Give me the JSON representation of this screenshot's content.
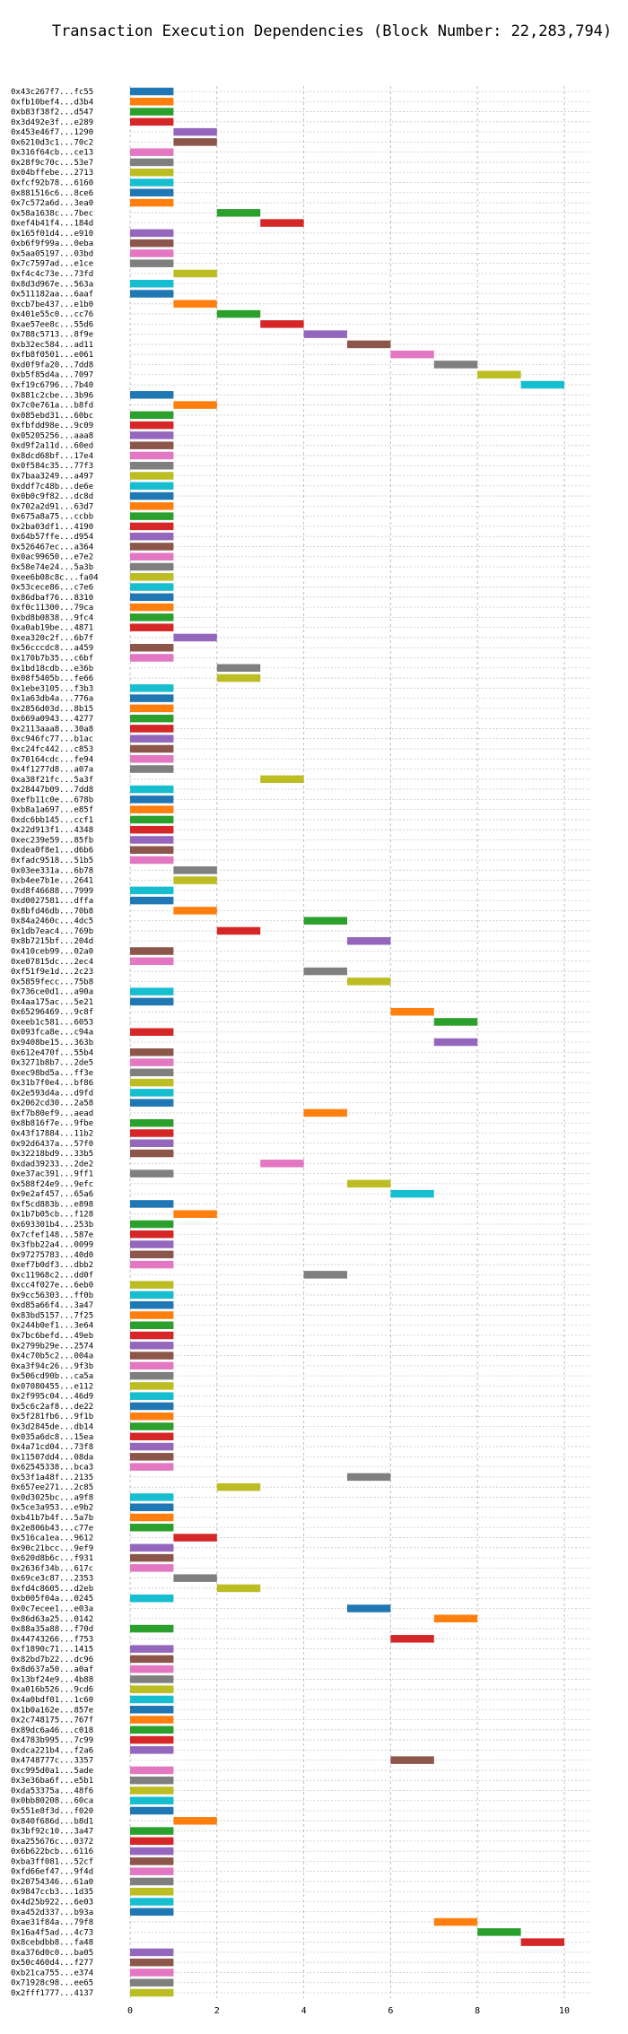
{
  "chart_data": {
    "type": "bar",
    "orientation": "horizontal-gantt",
    "title": "Transaction Execution Dependencies (Block Number: 22,283,794)",
    "xlabel": "",
    "ylabel": "",
    "xlim": [
      0,
      10.6
    ],
    "xticks": [
      0,
      2,
      4,
      6,
      8,
      10
    ],
    "grid": true,
    "palette": [
      "#1f77b4",
      "#ff7f0e",
      "#2ca02c",
      "#d62728",
      "#9467bd",
      "#8c564b",
      "#e377c2",
      "#7f7f7f",
      "#bcbd22",
      "#17becf"
    ],
    "transactions": [
      {
        "label": "0x43c267f7...fc55",
        "start": 0
      },
      {
        "label": "0xfb10bef4...d3b4",
        "start": 0
      },
      {
        "label": "0xb83f38f2...d547",
        "start": 0
      },
      {
        "label": "0x3d492e3f...e289",
        "start": 0
      },
      {
        "label": "0x453e46f7...1290",
        "start": 1
      },
      {
        "label": "0x6210d3c1...70c2",
        "start": 1
      },
      {
        "label": "0x316f64cb...ce13",
        "start": 0
      },
      {
        "label": "0x28f9c70c...53e7",
        "start": 0
      },
      {
        "label": "0x04bffebe...2713",
        "start": 0
      },
      {
        "label": "0xfcf92b78...6160",
        "start": 0
      },
      {
        "label": "0x881516c6...8ce6",
        "start": 0
      },
      {
        "label": "0x7c572a6d...3ea0",
        "start": 0
      },
      {
        "label": "0x58a1638c...7bec",
        "start": 2
      },
      {
        "label": "0xef4b41f4...184d",
        "start": 3
      },
      {
        "label": "0x165f01d4...e910",
        "start": 0
      },
      {
        "label": "0xb6f9f99a...0eba",
        "start": 0
      },
      {
        "label": "0x5aa05197...03bd",
        "start": 0
      },
      {
        "label": "0x7c7597ad...e1ce",
        "start": 0
      },
      {
        "label": "0xf4c4c73e...73fd",
        "start": 1
      },
      {
        "label": "0x8d3d967e...563a",
        "start": 0
      },
      {
        "label": "0x511182aa...6aaf",
        "start": 0
      },
      {
        "label": "0xcb7be437...e1b0",
        "start": 1
      },
      {
        "label": "0x401e55c0...cc76",
        "start": 2
      },
      {
        "label": "0xae57ee8c...55d6",
        "start": 3
      },
      {
        "label": "0x788c5713...8f9e",
        "start": 4
      },
      {
        "label": "0xb32ec584...ad11",
        "start": 5
      },
      {
        "label": "0xfb8f0501...e061",
        "start": 6
      },
      {
        "label": "0xd0f9fa20...7dd8",
        "start": 7
      },
      {
        "label": "0xb5f85d4a...7097",
        "start": 8
      },
      {
        "label": "0xf19c6796...7b40",
        "start": 9
      },
      {
        "label": "0x881c2cbe...3b96",
        "start": 0
      },
      {
        "label": "0x7c0e761a...b8fd",
        "start": 1
      },
      {
        "label": "0x085ebd31...60bc",
        "start": 0
      },
      {
        "label": "0xfbfdd98e...9c09",
        "start": 0
      },
      {
        "label": "0x05205256...aaa8",
        "start": 0
      },
      {
        "label": "0xd9f2a11d...60ed",
        "start": 0
      },
      {
        "label": "0x8dcd68bf...17e4",
        "start": 0
      },
      {
        "label": "0x0f584c35...77f3",
        "start": 0
      },
      {
        "label": "0x7baa3249...a497",
        "start": 0
      },
      {
        "label": "0xddf7c48b...de6e",
        "start": 0
      },
      {
        "label": "0x0b0c9f82...dc8d",
        "start": 0
      },
      {
        "label": "0x702a2d91...63d7",
        "start": 0
      },
      {
        "label": "0x675a8a75...ccbb",
        "start": 0
      },
      {
        "label": "0x2ba03df1...4190",
        "start": 0
      },
      {
        "label": "0x64b57ffe...d954",
        "start": 0
      },
      {
        "label": "0x526467ec...a364",
        "start": 0
      },
      {
        "label": "0x0ac99650...e7e2",
        "start": 0
      },
      {
        "label": "0x58e74e24...5a3b",
        "start": 0
      },
      {
        "label": "0xee6b08c8c...fa04",
        "start": 0
      },
      {
        "label": "0x53cece86...c7e6",
        "start": 0
      },
      {
        "label": "0x86dbaf76...8310",
        "start": 0
      },
      {
        "label": "0xf0c11300...79ca",
        "start": 0
      },
      {
        "label": "0xbd8b0838...9fc4",
        "start": 0
      },
      {
        "label": "0xa0ab19be...4871",
        "start": 0
      },
      {
        "label": "0xea320c2f...6b7f",
        "start": 1
      },
      {
        "label": "0x56cccdc8...a459",
        "start": 0
      },
      {
        "label": "0x170b7b35...c6bf",
        "start": 0
      },
      {
        "label": "0x1bd18cdb...e36b",
        "start": 2
      },
      {
        "label": "0x08f5405b...fe66",
        "start": 2
      },
      {
        "label": "0x1ebe3105...f3b3",
        "start": 0
      },
      {
        "label": "0x1a63db4a...776a",
        "start": 0
      },
      {
        "label": "0x2856d03d...8b15",
        "start": 0
      },
      {
        "label": "0x669a0943...4277",
        "start": 0
      },
      {
        "label": "0x2113aaa8...30a8",
        "start": 0
      },
      {
        "label": "0xc946fc77...b1ac",
        "start": 0
      },
      {
        "label": "0xc24fc442...c853",
        "start": 0
      },
      {
        "label": "0x70164cdc...fe94",
        "start": 0
      },
      {
        "label": "0x4f1277d8...a07a",
        "start": 0
      },
      {
        "label": "0xa38f21fc...5a3f",
        "start": 3
      },
      {
        "label": "0x28447b09...7dd8",
        "start": 0
      },
      {
        "label": "0xefb11c0e...678b",
        "start": 0
      },
      {
        "label": "0xb8a1a697...e85f",
        "start": 0
      },
      {
        "label": "0xdc6bb145...ccf1",
        "start": 0
      },
      {
        "label": "0x22d913f1...4348",
        "start": 0
      },
      {
        "label": "0xec239e59...85fb",
        "start": 0
      },
      {
        "label": "0xdea0f8e1...d6b6",
        "start": 0
      },
      {
        "label": "0xfadc9518...51b5",
        "start": 0
      },
      {
        "label": "0x03ee331a...6b78",
        "start": 1
      },
      {
        "label": "0xb4ee7b1e...2641",
        "start": 1
      },
      {
        "label": "0xd8f46688...7999",
        "start": 0
      },
      {
        "label": "0xd0027581...dffa",
        "start": 0
      },
      {
        "label": "0x8bfd46db...70b8",
        "start": 1
      },
      {
        "label": "0x84a2460c...4dc5",
        "start": 4
      },
      {
        "label": "0x1db7eac4...769b",
        "start": 2
      },
      {
        "label": "0x8b7215bf...204d",
        "start": 5
      },
      {
        "label": "0x410ceb99...02a0",
        "start": 0
      },
      {
        "label": "0xe07815dc...2ec4",
        "start": 0
      },
      {
        "label": "0xf51f9e1d...2c23",
        "start": 4
      },
      {
        "label": "0x5859fecc...75b8",
        "start": 5
      },
      {
        "label": "0x736ce0d1...a90a",
        "start": 0
      },
      {
        "label": "0x4aa175ac...5e21",
        "start": 0
      },
      {
        "label": "0x65296469...9c8f",
        "start": 6
      },
      {
        "label": "0xeeb1c581...6053",
        "start": 7
      },
      {
        "label": "0x093fca8e...c94a",
        "start": 0
      },
      {
        "label": "0x9408be15...363b",
        "start": 7
      },
      {
        "label": "0x612e470f...55b4",
        "start": 0
      },
      {
        "label": "0x3271b8b7...2de5",
        "start": 0
      },
      {
        "label": "0xec98bd5a...ff3e",
        "start": 0
      },
      {
        "label": "0x31b7f0e4...bf86",
        "start": 0
      },
      {
        "label": "0x2e593d4a...d9fd",
        "start": 0
      },
      {
        "label": "0x2062cd30...2a58",
        "start": 0
      },
      {
        "label": "0xf7b80ef9...aead",
        "start": 4
      },
      {
        "label": "0x8b816f7e...9fbe",
        "start": 0
      },
      {
        "label": "0x43f17884...11b2",
        "start": 0
      },
      {
        "label": "0x92d6437a...57f0",
        "start": 0
      },
      {
        "label": "0x32218bd9...33b5",
        "start": 0
      },
      {
        "label": "0xdad39233...2de2",
        "start": 3
      },
      {
        "label": "0xe37ac391...9ff1",
        "start": 0
      },
      {
        "label": "0x588f24e9...9efc",
        "start": 5
      },
      {
        "label": "0x9e2af457...65a6",
        "start": 6
      },
      {
        "label": "0xf5cd883b...e898",
        "start": 0
      },
      {
        "label": "0x1b7b05cb...f128",
        "start": 1
      },
      {
        "label": "0x693301b4...253b",
        "start": 0
      },
      {
        "label": "0x7cfef148...587e",
        "start": 0
      },
      {
        "label": "0x3fbb22a4...0099",
        "start": 0
      },
      {
        "label": "0x97275783...40d0",
        "start": 0
      },
      {
        "label": "0xef7b0df3...dbb2",
        "start": 0
      },
      {
        "label": "0xc11968c2...dd0f",
        "start": 4
      },
      {
        "label": "0xcc4f027e...6eb0",
        "start": 0
      },
      {
        "label": "0x9cc56303...ff0b",
        "start": 0
      },
      {
        "label": "0xd85a66f4...3a47",
        "start": 0
      },
      {
        "label": "0x83bd5157...7f25",
        "start": 0
      },
      {
        "label": "0x244b0ef1...3e64",
        "start": 0
      },
      {
        "label": "0x7bc6befd...49eb",
        "start": 0
      },
      {
        "label": "0x2799b29e...2574",
        "start": 0
      },
      {
        "label": "0x4c70b5c2...004a",
        "start": 0
      },
      {
        "label": "0xa3f94c26...9f3b",
        "start": 0
      },
      {
        "label": "0x506cd90b...ca5a",
        "start": 0
      },
      {
        "label": "0x07080455...e112",
        "start": 0
      },
      {
        "label": "0x2f995c04...46d9",
        "start": 0
      },
      {
        "label": "0x5c6c2af8...de22",
        "start": 0
      },
      {
        "label": "0x5f281fb6...9f1b",
        "start": 0
      },
      {
        "label": "0x3d2845de...db14",
        "start": 0
      },
      {
        "label": "0x035a6dc8...15ea",
        "start": 0
      },
      {
        "label": "0x4a71cd04...73f8",
        "start": 0
      },
      {
        "label": "0x11507dd4...08da",
        "start": 0
      },
      {
        "label": "0x62545338...bca3",
        "start": 0
      },
      {
        "label": "0x53f1a48f...2135",
        "start": 5
      },
      {
        "label": "0x657ee271...2c85",
        "start": 2
      },
      {
        "label": "0x0d3025bc...a9f8",
        "start": 0
      },
      {
        "label": "0x5ce3a953...e9b2",
        "start": 0
      },
      {
        "label": "0xb41b7b4f...5a7b",
        "start": 0
      },
      {
        "label": "0x2e806b43...c77e",
        "start": 0
      },
      {
        "label": "0x516ca1ea...9612",
        "start": 1
      },
      {
        "label": "0x90c21bcc...9ef9",
        "start": 0
      },
      {
        "label": "0x620d8b6c...f931",
        "start": 0
      },
      {
        "label": "0x2636f34b...617c",
        "start": 0
      },
      {
        "label": "0x69ce3c87...2353",
        "start": 1
      },
      {
        "label": "0xfd4c8605...d2eb",
        "start": 2
      },
      {
        "label": "0xb005f04a...0245",
        "start": 0
      },
      {
        "label": "0x0c7ecee1...e03a",
        "start": 5
      },
      {
        "label": "0x86d63a25...0142",
        "start": 7
      },
      {
        "label": "0x88a35a88...f70d",
        "start": 0
      },
      {
        "label": "0x44743266...f753",
        "start": 6
      },
      {
        "label": "0xf1890c71...1415",
        "start": 0
      },
      {
        "label": "0x82bd7b22...dc96",
        "start": 0
      },
      {
        "label": "0x8d637a50...a0af",
        "start": 0
      },
      {
        "label": "0x13bf24e9...4b88",
        "start": 0
      },
      {
        "label": "0xa016b526...9cd6",
        "start": 0
      },
      {
        "label": "0x4a0bdf01...1c60",
        "start": 0
      },
      {
        "label": "0x1b0a162e...857e",
        "start": 0
      },
      {
        "label": "0x2c748175...767f",
        "start": 0
      },
      {
        "label": "0x89dc6a46...c018",
        "start": 0
      },
      {
        "label": "0x4783b995...7c99",
        "start": 0
      },
      {
        "label": "0xdca221b4...f2a6",
        "start": 0
      },
      {
        "label": "0x4748777c...3357",
        "start": 6
      },
      {
        "label": "0xc995d0a1...5ade",
        "start": 0
      },
      {
        "label": "0x3e36ba6f...e5b1",
        "start": 0
      },
      {
        "label": "0xda53375a...48f6",
        "start": 0
      },
      {
        "label": "0x0bb80208...60ca",
        "start": 0
      },
      {
        "label": "0x551e8f3d...f020",
        "start": 0
      },
      {
        "label": "0x840f686d...b8d1",
        "start": 1
      },
      {
        "label": "0x3bf92c10...3a47",
        "start": 0
      },
      {
        "label": "0xa255676c...0372",
        "start": 0
      },
      {
        "label": "0x6b622bcb...6116",
        "start": 0
      },
      {
        "label": "0xba3ff081...52cf",
        "start": 0
      },
      {
        "label": "0xfd66ef47...9f4d",
        "start": 0
      },
      {
        "label": "0x20754346...61a0",
        "start": 0
      },
      {
        "label": "0x9847ccb3...1d35",
        "start": 0
      },
      {
        "label": "0x4d25b922...6e03",
        "start": 0
      },
      {
        "label": "0xa452d337...b93a",
        "start": 0
      },
      {
        "label": "0xae31f84a...79f8",
        "start": 7
      },
      {
        "label": "0x16a4f5ad...4c73",
        "start": 8
      },
      {
        "label": "0x8cebdbb8...fa48",
        "start": 9
      },
      {
        "label": "0xa376d0c0...ba05",
        "start": 0
      },
      {
        "label": "0x50c460d4...f277",
        "start": 0
      },
      {
        "label": "0xb21ca755...e374",
        "start": 0
      },
      {
        "label": "0x71928c98...ee65",
        "start": 0
      },
      {
        "label": "0x2fff1777...4137",
        "start": 0
      }
    ]
  }
}
